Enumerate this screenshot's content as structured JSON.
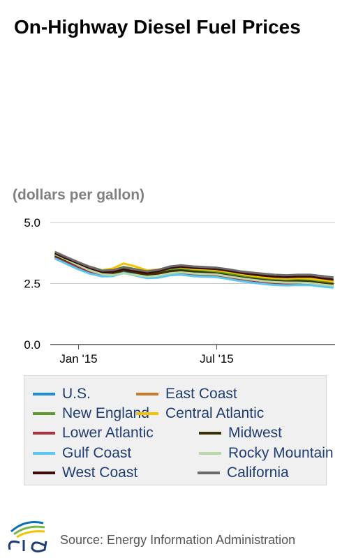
{
  "chart_data": {
    "type": "line",
    "title": "On-Highway Diesel Fuel Prices",
    "ylabel": "(dollars per gallon)",
    "ylim": [
      0,
      5.0
    ],
    "y_ticks": [
      "5.0",
      "2.5",
      "0.0"
    ],
    "x_ticks": [
      "Jan '15",
      "Jul '15"
    ],
    "grid": true,
    "x": [
      "2014-12-01",
      "2014-12-15",
      "2015-01-01",
      "2015-01-15",
      "2015-02-01",
      "2015-02-15",
      "2015-03-01",
      "2015-03-15",
      "2015-04-01",
      "2015-04-15",
      "2015-05-01",
      "2015-05-15",
      "2015-06-01",
      "2015-06-15",
      "2015-07-01",
      "2015-07-15",
      "2015-08-01",
      "2015-08-15",
      "2015-09-01",
      "2015-09-15",
      "2015-10-01",
      "2015-10-15",
      "2015-11-01",
      "2015-11-15",
      "2015-12-01"
    ],
    "series": [
      {
        "name": "U.S.",
        "color": "#1f8bd0",
        "values": [
          3.6,
          3.41,
          3.18,
          3.01,
          2.86,
          2.87,
          3.01,
          2.92,
          2.79,
          2.82,
          2.92,
          2.94,
          2.88,
          2.86,
          2.84,
          2.77,
          2.68,
          2.62,
          2.56,
          2.52,
          2.5,
          2.52,
          2.51,
          2.45,
          2.4
        ]
      },
      {
        "name": "East Coast",
        "color": "#c87a2e",
        "values": [
          3.68,
          3.48,
          3.24,
          3.08,
          2.95,
          2.99,
          3.16,
          3.07,
          2.92,
          2.95,
          3.03,
          3.05,
          2.98,
          2.96,
          2.92,
          2.86,
          2.77,
          2.7,
          2.64,
          2.6,
          2.58,
          2.6,
          2.59,
          2.54,
          2.49
        ]
      },
      {
        "name": "New England",
        "color": "#5a9a2f",
        "values": [
          3.72,
          3.55,
          3.36,
          3.2,
          3.04,
          3.05,
          3.18,
          3.1,
          2.98,
          3.0,
          3.08,
          3.1,
          3.04,
          3.01,
          2.98,
          2.92,
          2.84,
          2.78,
          2.72,
          2.68,
          2.66,
          2.68,
          2.66,
          2.61,
          2.57
        ]
      },
      {
        "name": "Central Atlantic",
        "color": "#f2c300",
        "values": [
          3.74,
          3.56,
          3.33,
          3.16,
          3.05,
          3.12,
          3.32,
          3.21,
          3.04,
          3.07,
          3.15,
          3.17,
          3.1,
          3.08,
          3.04,
          2.98,
          2.89,
          2.82,
          2.76,
          2.72,
          2.7,
          2.72,
          2.7,
          2.65,
          2.6
        ]
      },
      {
        "name": "Lower Atlantic",
        "color": "#a8323e",
        "values": [
          3.58,
          3.38,
          3.14,
          2.99,
          2.86,
          2.89,
          3.05,
          2.96,
          2.82,
          2.84,
          2.93,
          2.95,
          2.89,
          2.87,
          2.84,
          2.77,
          2.68,
          2.62,
          2.56,
          2.52,
          2.5,
          2.52,
          2.5,
          2.45,
          2.4
        ]
      },
      {
        "name": "Midwest",
        "color": "#3a3000",
        "values": [
          3.64,
          3.46,
          3.24,
          3.05,
          2.9,
          2.91,
          3.04,
          2.96,
          2.86,
          2.91,
          3.01,
          3.04,
          2.98,
          2.95,
          2.91,
          2.84,
          2.75,
          2.7,
          2.64,
          2.6,
          2.58,
          2.6,
          2.58,
          2.52,
          2.46
        ]
      },
      {
        "name": "Gulf Coast",
        "color": "#5ac8f0",
        "values": [
          3.52,
          3.32,
          3.08,
          2.91,
          2.79,
          2.8,
          2.93,
          2.84,
          2.72,
          2.74,
          2.84,
          2.86,
          2.8,
          2.78,
          2.76,
          2.69,
          2.6,
          2.54,
          2.48,
          2.44,
          2.42,
          2.44,
          2.43,
          2.38,
          2.33
        ]
      },
      {
        "name": "Rocky Mountain",
        "color": "#b8d8a8",
        "values": [
          3.7,
          3.5,
          3.25,
          3.05,
          2.88,
          2.85,
          2.92,
          2.86,
          2.78,
          2.82,
          2.92,
          2.96,
          2.91,
          2.89,
          2.87,
          2.8,
          2.72,
          2.66,
          2.6,
          2.56,
          2.54,
          2.54,
          2.52,
          2.46,
          2.41
        ]
      },
      {
        "name": "West Coast",
        "color": "#3c0a0a",
        "values": [
          3.74,
          3.54,
          3.32,
          3.14,
          2.97,
          2.99,
          3.1,
          3.02,
          2.94,
          3.0,
          3.14,
          3.19,
          3.14,
          3.12,
          3.09,
          3.03,
          2.94,
          2.88,
          2.82,
          2.78,
          2.76,
          2.78,
          2.78,
          2.72,
          2.66
        ]
      },
      {
        "name": "California",
        "color": "#6b6b6b",
        "values": [
          3.8,
          3.6,
          3.37,
          3.19,
          3.03,
          3.05,
          3.16,
          3.08,
          3.0,
          3.06,
          3.2,
          3.25,
          3.2,
          3.18,
          3.15,
          3.09,
          3.0,
          2.95,
          2.9,
          2.86,
          2.84,
          2.86,
          2.86,
          2.81,
          2.75
        ]
      }
    ]
  },
  "source": {
    "logo_text": "eia",
    "text": "Source: Energy Information Administration"
  }
}
